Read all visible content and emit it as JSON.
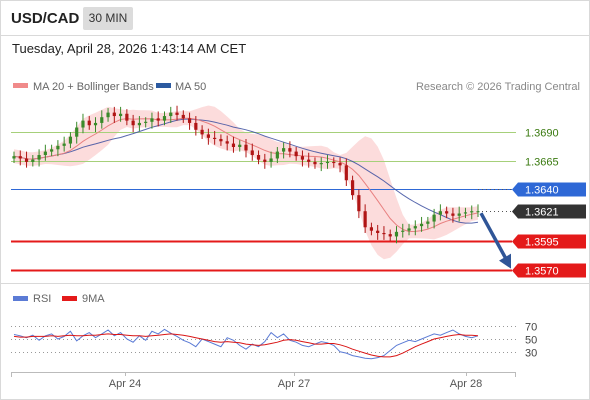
{
  "header": {
    "symbol": "USD/CAD",
    "interval": "30 MIN",
    "timestamp": "Tuesday, April 28, 2026 1:43:14 AM CET"
  },
  "legend": {
    "ma20_label": "MA 20 + Bollinger Bands",
    "ma50_label": "MA 50",
    "credit": "Research © 2026 Trading Central"
  },
  "levels": [
    {
      "value": 1.369,
      "label": "1.3690",
      "kind": "green-line"
    },
    {
      "value": 1.3665,
      "label": "1.3665",
      "kind": "green-line"
    },
    {
      "value": 1.364,
      "label": "1.3640",
      "kind": "blue-box"
    },
    {
      "value": 1.3621,
      "label": "1.3621",
      "kind": "current"
    },
    {
      "value": 1.3595,
      "label": "1.3595",
      "kind": "red-box"
    },
    {
      "value": 1.357,
      "label": "1.3570",
      "kind": "red-box"
    }
  ],
  "rsi_panel": {
    "rsi_label": "RSI",
    "ma_label": "9MA",
    "levels": [
      70,
      50,
      30
    ],
    "level_labels": [
      "70",
      "50",
      "30"
    ]
  },
  "x_axis": {
    "labels": [
      "Apr 24",
      "Apr 27",
      "Apr 28"
    ]
  },
  "colors": {
    "up": "#3a8a2a",
    "down": "#b01515",
    "ma20": "#e88080",
    "ma50": "#3c4fa0",
    "bollinger_fill": "#fbd0d0",
    "green_level": "#a6d07a",
    "blue_level": "#2e68d6",
    "red_level": "#e41a1a",
    "current_box": "#333333",
    "arrow": "#2f5597",
    "rsi": "#5b7bd5",
    "rsi_ma": "#d91515"
  },
  "chart_data": {
    "type": "candlestick",
    "instrument": "USD/CAD",
    "timeframe": "30 MIN",
    "y_range": [
      1.3561,
      1.3718
    ],
    "close_values": [
      1.3669,
      1.3667,
      1.3664,
      1.3666,
      1.367,
      1.3673,
      1.3675,
      1.3678,
      1.368,
      1.3686,
      1.3694,
      1.37,
      1.3696,
      1.3698,
      1.3703,
      1.3707,
      1.3704,
      1.3706,
      1.37,
      1.3696,
      1.3698,
      1.3699,
      1.3702,
      1.37,
      1.3704,
      1.3707,
      1.3705,
      1.3702,
      1.3698,
      1.3692,
      1.3688,
      1.3685,
      1.3684,
      1.3682,
      1.368,
      1.3677,
      1.3679,
      1.3674,
      1.367,
      1.3666,
      1.3664,
      1.3667,
      1.3673,
      1.3676,
      1.3673,
      1.3669,
      1.3666,
      1.3664,
      1.3662,
      1.3663,
      1.3664,
      1.3663,
      1.3661,
      1.3648,
      1.3635,
      1.3621,
      1.3607,
      1.3604,
      1.3602,
      1.3601,
      1.3599,
      1.3603,
      1.3604,
      1.3606,
      1.3608,
      1.361,
      1.3612,
      1.3618,
      1.3621,
      1.3619,
      1.3617,
      1.3619,
      1.362,
      1.3621,
      1.3621
    ],
    "rsi": {
      "upper": 70,
      "mid": 50,
      "lower": 30,
      "rsi_values": [
        57,
        55,
        52,
        56,
        48,
        55,
        58,
        50,
        54,
        62,
        47,
        55,
        60,
        52,
        58,
        64,
        55,
        60,
        50,
        45,
        55,
        48,
        62,
        58,
        65,
        59,
        54,
        48,
        44,
        38,
        50,
        46,
        42,
        38,
        52,
        48,
        40,
        34,
        42,
        38,
        46,
        60,
        52,
        58,
        48,
        45,
        40,
        38,
        42,
        46,
        44,
        40,
        30,
        28,
        24,
        22,
        20,
        19,
        21,
        24,
        32,
        40,
        44,
        48,
        46,
        50,
        54,
        58,
        56,
        60,
        64,
        58,
        54,
        52,
        55
      ],
      "ma_values": [
        54,
        53,
        53,
        54,
        54,
        54,
        55,
        54,
        55,
        56,
        55,
        55,
        56,
        56,
        57,
        58,
        57,
        57,
        56,
        55,
        55,
        54,
        55,
        56,
        57,
        58,
        57,
        56,
        54,
        52,
        50,
        48,
        46,
        45,
        46,
        45,
        44,
        42,
        41,
        40,
        41,
        43,
        45,
        48,
        49,
        48,
        46,
        44,
        42,
        42,
        43,
        43,
        41,
        38,
        34,
        31,
        28,
        25,
        23,
        22,
        22,
        24,
        28,
        33,
        38,
        42,
        46,
        50,
        52,
        54,
        56,
        57,
        56,
        56,
        55
      ]
    }
  }
}
